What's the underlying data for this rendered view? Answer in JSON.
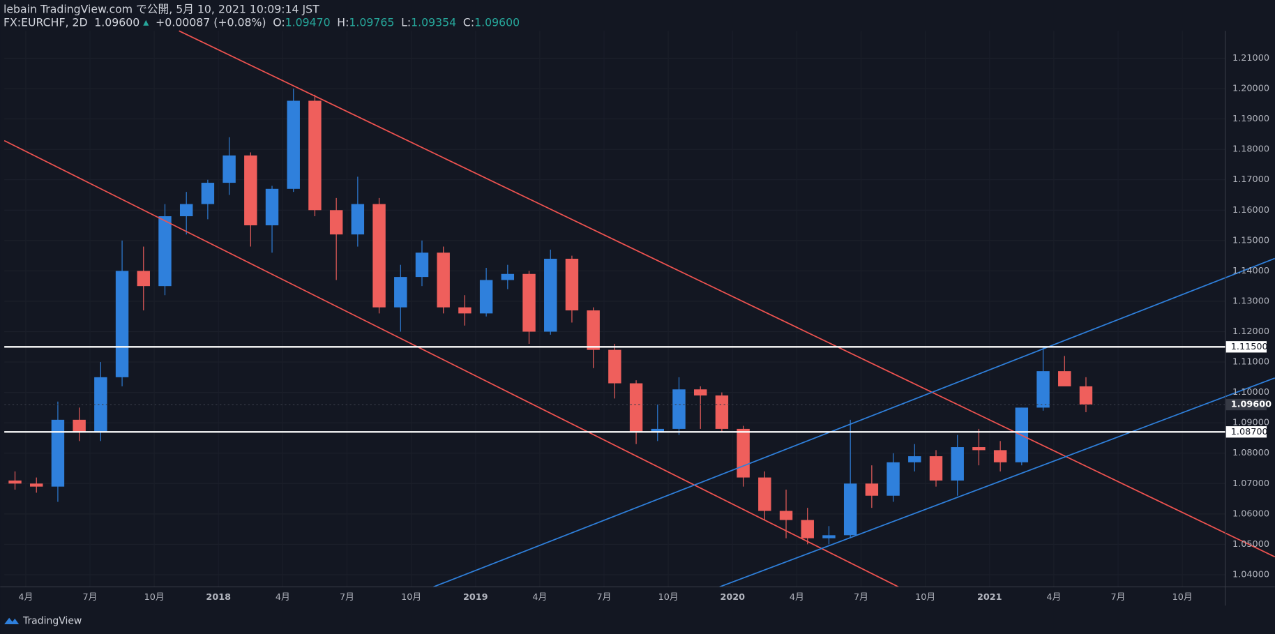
{
  "header": {
    "publisher": "lebain TradingView.com で公開, 5月 10, 2021 10:09:14 JST",
    "symbol": "FX:EURCHF, 2D",
    "last": "1.09600",
    "arrow": "▲",
    "change": "+0.00087 (+0.08%)",
    "o_label": "O:",
    "o": "1.09470",
    "h_label": "H:",
    "h": "1.09765",
    "l_label": "L:",
    "l": "1.09354",
    "c_label": "C:",
    "c": "1.09600"
  },
  "footer": {
    "brand": "TradingView"
  },
  "chart_data": {
    "type": "candlestick",
    "up_color": "#2f80dc",
    "down_color": "#ef5f5c",
    "x": [
      "2017-03",
      "2017-04",
      "2017-05",
      "2017-06",
      "2017-07",
      "2017-08",
      "2017-09",
      "2017-10",
      "2017-11",
      "2017-12",
      "2018-01",
      "2018-02",
      "2018-03",
      "2018-04",
      "2018-05",
      "2018-06",
      "2018-07",
      "2018-08",
      "2018-09",
      "2018-10",
      "2018-11",
      "2018-12",
      "2019-01",
      "2019-02",
      "2019-03",
      "2019-04",
      "2019-05",
      "2019-06",
      "2019-07",
      "2019-08",
      "2019-09",
      "2019-10",
      "2019-11",
      "2019-12",
      "2020-01",
      "2020-02",
      "2020-03",
      "2020-04",
      "2020-05",
      "2020-06",
      "2020-07",
      "2020-08",
      "2020-09",
      "2020-10",
      "2020-11",
      "2020-12",
      "2021-01",
      "2021-02",
      "2021-03",
      "2021-04",
      "2021-05"
    ],
    "open": [
      1.071,
      1.07,
      1.069,
      1.091,
      1.087,
      1.105,
      1.14,
      1.135,
      1.158,
      1.162,
      1.169,
      1.178,
      1.155,
      1.167,
      1.196,
      1.16,
      1.152,
      1.162,
      1.128,
      1.138,
      1.146,
      1.128,
      1.126,
      1.137,
      1.139,
      1.12,
      1.144,
      1.127,
      1.114,
      1.103,
      1.087,
      1.088,
      1.101,
      1.099,
      1.088,
      1.072,
      1.061,
      1.058,
      1.052,
      1.053,
      1.07,
      1.066,
      1.077,
      1.079,
      1.071,
      1.082,
      1.081,
      1.077,
      1.095,
      1.107,
      1.102
    ],
    "high": [
      1.074,
      1.072,
      1.097,
      1.095,
      1.11,
      1.15,
      1.148,
      1.162,
      1.166,
      1.17,
      1.184,
      1.179,
      1.168,
      1.2,
      1.198,
      1.164,
      1.171,
      1.164,
      1.142,
      1.15,
      1.148,
      1.132,
      1.141,
      1.142,
      1.14,
      1.147,
      1.145,
      1.128,
      1.116,
      1.104,
      1.096,
      1.105,
      1.102,
      1.1,
      1.089,
      1.074,
      1.068,
      1.062,
      1.056,
      1.091,
      1.076,
      1.08,
      1.083,
      1.081,
      1.086,
      1.088,
      1.084,
      1.095,
      1.115,
      1.112,
      1.105
    ],
    "low": [
      1.068,
      1.067,
      1.064,
      1.084,
      1.084,
      1.102,
      1.127,
      1.132,
      1.152,
      1.157,
      1.165,
      1.148,
      1.146,
      1.166,
      1.158,
      1.137,
      1.148,
      1.126,
      1.12,
      1.135,
      1.126,
      1.122,
      1.125,
      1.134,
      1.116,
      1.119,
      1.123,
      1.108,
      1.098,
      1.083,
      1.084,
      1.086,
      1.088,
      1.087,
      1.069,
      1.058,
      1.052,
      1.05,
      1.05,
      1.052,
      1.062,
      1.064,
      1.074,
      1.069,
      1.066,
      1.076,
      1.074,
      1.076,
      1.094,
      1.103,
      1.0935
    ],
    "close": [
      1.07,
      1.069,
      1.091,
      1.087,
      1.105,
      1.14,
      1.135,
      1.158,
      1.162,
      1.169,
      1.178,
      1.155,
      1.167,
      1.196,
      1.16,
      1.152,
      1.162,
      1.128,
      1.138,
      1.146,
      1.128,
      1.126,
      1.137,
      1.139,
      1.12,
      1.144,
      1.127,
      1.114,
      1.103,
      1.087,
      1.088,
      1.101,
      1.099,
      1.088,
      1.072,
      1.061,
      1.058,
      1.052,
      1.053,
      1.07,
      1.066,
      1.077,
      1.079,
      1.071,
      1.082,
      1.081,
      1.077,
      1.095,
      1.107,
      1.102,
      1.096
    ],
    "xlim": [
      "2017-03",
      "2021-12"
    ],
    "xticks": [
      {
        "value": "2017-04",
        "label": "4月"
      },
      {
        "value": "2017-07",
        "label": "7月"
      },
      {
        "value": "2017-10",
        "label": "10月"
      },
      {
        "value": "2018-01",
        "label": "2018"
      },
      {
        "value": "2018-04",
        "label": "4月"
      },
      {
        "value": "2018-07",
        "label": "7月"
      },
      {
        "value": "2018-10",
        "label": "10月"
      },
      {
        "value": "2019-01",
        "label": "2019"
      },
      {
        "value": "2019-04",
        "label": "4月"
      },
      {
        "value": "2019-07",
        "label": "7月"
      },
      {
        "value": "2019-10",
        "label": "10月"
      },
      {
        "value": "2020-01",
        "label": "2020"
      },
      {
        "value": "2020-04",
        "label": "4月"
      },
      {
        "value": "2020-07",
        "label": "7月"
      },
      {
        "value": "2020-10",
        "label": "10月"
      },
      {
        "value": "2021-01",
        "label": "2021"
      },
      {
        "value": "2021-04",
        "label": "4月"
      },
      {
        "value": "2021-07",
        "label": "7月"
      },
      {
        "value": "2021-10",
        "label": "10月"
      }
    ],
    "ylim": [
      1.036,
      1.219
    ],
    "yticks": [
      {
        "value": 1.04,
        "label": "1.04000"
      },
      {
        "value": 1.05,
        "label": "1.05000"
      },
      {
        "value": 1.06,
        "label": "1.06000"
      },
      {
        "value": 1.07,
        "label": "1.07000"
      },
      {
        "value": 1.08,
        "label": "1.08000"
      },
      {
        "value": 1.09,
        "label": "1.09000"
      },
      {
        "value": 1.1,
        "label": "1.10000"
      },
      {
        "value": 1.11,
        "label": "1.11000"
      },
      {
        "value": 1.12,
        "label": "1.12000"
      },
      {
        "value": 1.13,
        "label": "1.13000"
      },
      {
        "value": 1.14,
        "label": "1.14000"
      },
      {
        "value": 1.15,
        "label": "1.15000"
      },
      {
        "value": 1.16,
        "label": "1.16000"
      },
      {
        "value": 1.17,
        "label": "1.17000"
      },
      {
        "value": 1.18,
        "label": "1.18000"
      },
      {
        "value": 1.19,
        "label": "1.19000"
      },
      {
        "value": 1.2,
        "label": "1.20000"
      },
      {
        "value": 1.21,
        "label": "1.21000"
      }
    ],
    "hlines": [
      {
        "value": 1.115,
        "label": "1.11500"
      },
      {
        "value": 1.087,
        "label": "1.08700"
      }
    ],
    "price_tag": {
      "value": 1.096,
      "label": "1.09600"
    }
  }
}
